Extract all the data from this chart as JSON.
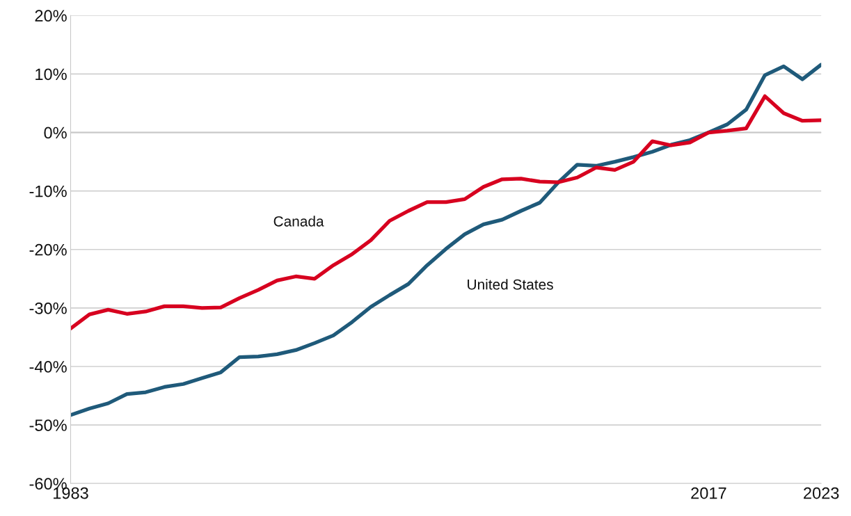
{
  "chart_data": {
    "type": "line",
    "x": [
      1983,
      1984,
      1985,
      1986,
      1987,
      1988,
      1989,
      1990,
      1991,
      1992,
      1993,
      1994,
      1995,
      1996,
      1997,
      1998,
      1999,
      2000,
      2001,
      2002,
      2003,
      2004,
      2005,
      2006,
      2007,
      2008,
      2009,
      2010,
      2011,
      2012,
      2013,
      2014,
      2015,
      2016,
      2017,
      2018,
      2019,
      2020,
      2021,
      2022,
      2023
    ],
    "series": [
      {
        "name": "United States",
        "color": "#1f5a7a",
        "values": [
          -48.3,
          -47.2,
          -46.3,
          -44.7,
          -44.4,
          -43.5,
          -43.0,
          -42.0,
          -41.0,
          -38.4,
          -38.3,
          -37.9,
          -37.2,
          -36.0,
          -34.7,
          -32.4,
          -29.8,
          -27.8,
          -25.9,
          -22.7,
          -19.9,
          -17.4,
          -15.7,
          -14.9,
          -13.4,
          -12.0,
          -8.5,
          -5.5,
          -5.7,
          -5.0,
          -4.2,
          -3.3,
          -2.1,
          -1.3,
          0.0,
          1.4,
          3.9,
          9.8,
          11.3,
          9.1,
          11.6
        ]
      },
      {
        "name": "Canada",
        "color": "#d7001f",
        "values": [
          -33.5,
          -31.1,
          -30.3,
          -31.0,
          -30.6,
          -29.7,
          -29.7,
          -30.0,
          -29.9,
          -28.3,
          -26.9,
          -25.3,
          -24.6,
          -25.0,
          -22.7,
          -20.8,
          -18.4,
          -15.1,
          -13.4,
          -11.9,
          -11.9,
          -11.4,
          -9.3,
          -8.0,
          -7.9,
          -8.4,
          -8.5,
          -7.7,
          -6.0,
          -6.4,
          -5.0,
          -1.5,
          -2.2,
          -1.7,
          0.0,
          0.3,
          0.7,
          6.2,
          3.3,
          2.0,
          2.1
        ]
      }
    ],
    "xlim": [
      1983,
      2023
    ],
    "xticks": [
      1983,
      2017,
      2023
    ],
    "ylim": [
      -60,
      20
    ],
    "yticks": [
      {
        "value": -60,
        "label": "-60%"
      },
      {
        "value": -50,
        "label": "-50%"
      },
      {
        "value": -40,
        "label": "-40%"
      },
      {
        "value": -30,
        "label": "-30%"
      },
      {
        "value": -20,
        "label": "-20%"
      },
      {
        "value": -10,
        "label": "-10%"
      },
      {
        "value": 0,
        "label": "0%"
      },
      {
        "value": 10,
        "label": "10%"
      },
      {
        "value": 20,
        "label": "20%"
      }
    ],
    "grid": "y",
    "legend": false,
    "marker": "none",
    "line_style": "solid"
  }
}
